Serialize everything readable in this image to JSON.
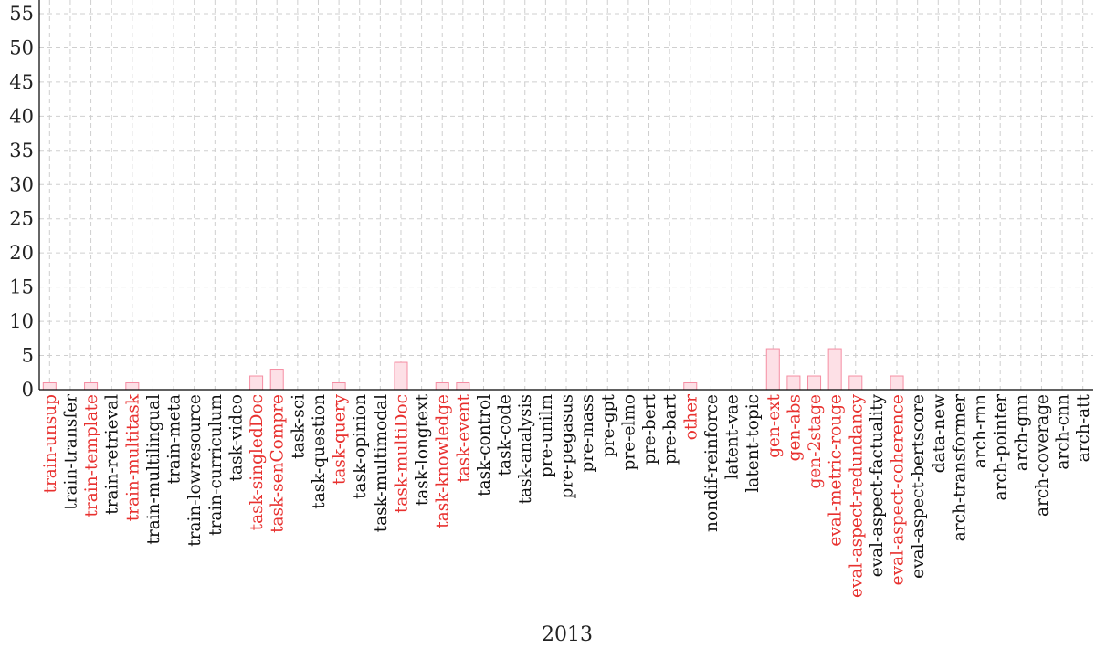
{
  "chart_data": {
    "type": "bar",
    "xlabel": "2013",
    "ylabel": "",
    "ylim": [
      0,
      57
    ],
    "yticks": [
      0,
      5,
      10,
      15,
      20,
      25,
      30,
      35,
      40,
      45,
      50,
      55
    ],
    "grid": true,
    "colors": {
      "bar_fill": "#fde0e6",
      "bar_stroke": "#f58ea3",
      "highlight_label": "#e8312f",
      "label": "#111111"
    },
    "categories": [
      "train-unsup",
      "train-transfer",
      "train-template",
      "train-retrieval",
      "train-multitask",
      "train-multilingual",
      "train-meta",
      "train-lowresource",
      "train-curriculum",
      "task-video",
      "task-singledDoc",
      "task-senCompre",
      "task-sci",
      "task-question",
      "task-query",
      "task-opinion",
      "task-multimodal",
      "task-multiDoc",
      "task-longtext",
      "task-knowledge",
      "task-event",
      "task-control",
      "task-code",
      "task-analysis",
      "pre-unilm",
      "pre-pegasus",
      "pre-mass",
      "pre-gpt",
      "pre-elmo",
      "pre-bert",
      "pre-bart",
      "other",
      "nondif-reinforce",
      "latent-vae",
      "latent-topic",
      "gen-ext",
      "gen-abs",
      "gen-2stage",
      "eval-metric-rouge",
      "eval-aspect-redundancy",
      "eval-aspect-factuality",
      "eval-aspect-coherence",
      "eval-aspect-bertscore",
      "data-new",
      "arch-transformer",
      "arch-rnn",
      "arch-pointer",
      "arch-gnn",
      "arch-coverage",
      "arch-cnn",
      "arch-att"
    ],
    "values": [
      1,
      0,
      1,
      0,
      1,
      0,
      0,
      0,
      0,
      0,
      2,
      3,
      0,
      0,
      1,
      0,
      0,
      4,
      0,
      1,
      1,
      0,
      0,
      0,
      0,
      0,
      0,
      0,
      0,
      0,
      0,
      1,
      0,
      0,
      0,
      6,
      2,
      2,
      6,
      2,
      0,
      2,
      0,
      0,
      0,
      0,
      0,
      0,
      0,
      0,
      0
    ],
    "highlighted": [
      true,
      false,
      true,
      false,
      true,
      false,
      false,
      false,
      false,
      false,
      true,
      true,
      false,
      false,
      true,
      false,
      false,
      true,
      false,
      true,
      true,
      false,
      false,
      false,
      false,
      false,
      false,
      false,
      false,
      false,
      false,
      true,
      false,
      false,
      false,
      true,
      true,
      true,
      true,
      true,
      false,
      true,
      false,
      false,
      false,
      false,
      false,
      false,
      false,
      false,
      false
    ]
  }
}
